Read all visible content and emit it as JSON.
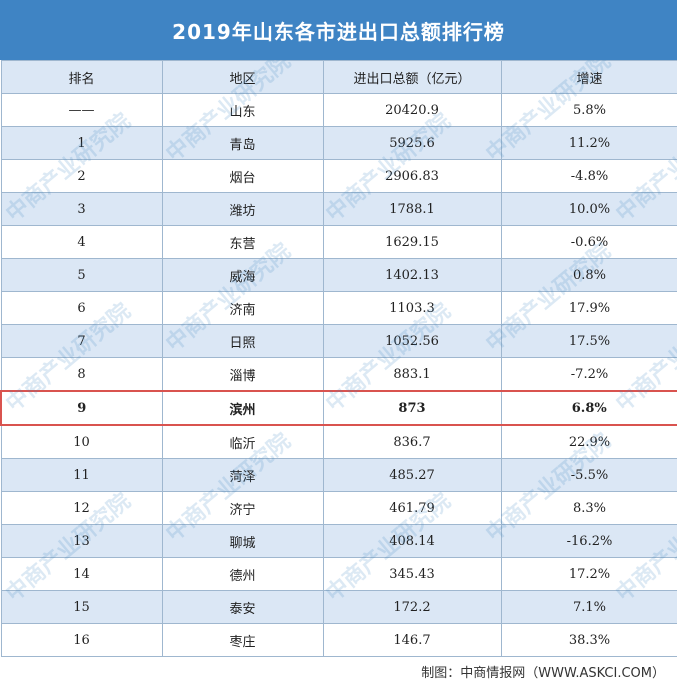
{
  "title": "2019年山东各市进出口总额排行榜",
  "headers": [
    "排名",
    "地区",
    "进出口总额（亿元）",
    "增速"
  ],
  "rows": [
    [
      "——",
      "山东",
      "20420.9",
      "5.8%"
    ],
    [
      "1",
      "青岛",
      "5925.6",
      "11.2%"
    ],
    [
      "2",
      "烟台",
      "2906.83",
      "-4.8%"
    ],
    [
      "3",
      "潍坊",
      "1788.1",
      "10.0%"
    ],
    [
      "4",
      "东营",
      "1629.15",
      "-0.6%"
    ],
    [
      "5",
      "威海",
      "1402.13",
      "0.8%"
    ],
    [
      "6",
      "济南",
      "1103.3",
      "17.9%"
    ],
    [
      "7",
      "日照",
      "1052.56",
      "17.5%"
    ],
    [
      "8",
      "淄博",
      "883.1",
      "-7.2%"
    ],
    [
      "9",
      "滨州",
      "873",
      "6.8%"
    ],
    [
      "10",
      "临沂",
      "836.7",
      "22.9%"
    ],
    [
      "11",
      "菏泽",
      "485.27",
      "-5.5%"
    ],
    [
      "12",
      "济宁",
      "461.79",
      "8.3%"
    ],
    [
      "13",
      "聊城",
      "408.14",
      "-16.2%"
    ],
    [
      "14",
      "德州",
      "345.43",
      "17.2%"
    ],
    [
      "15",
      "泰安",
      "172.2",
      "7.1%"
    ],
    [
      "16",
      "枣庄",
      "146.7",
      "38.3%"
    ]
  ],
  "highlight_rank": "9",
  "footer": "制图：中商情报网（WWW.ASKCI.COM）",
  "watermark_text": "中商产业研究院",
  "colors": {
    "header": "#3f84c4",
    "stripe": "#dbe7f5",
    "highlight_border": "#d9534f"
  }
}
